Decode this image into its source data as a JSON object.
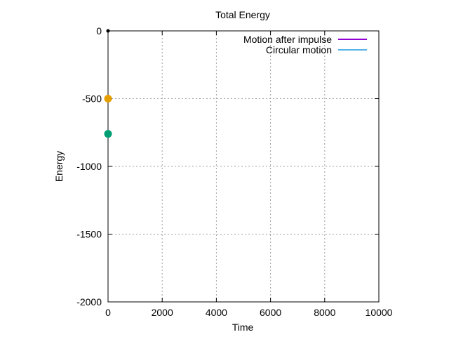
{
  "chart_data": {
    "type": "line",
    "title": "Total Energy",
    "xlabel": "Time",
    "ylabel": "Energy",
    "xlim": [
      0,
      10000
    ],
    "ylim": [
      -2000,
      0
    ],
    "x_ticks": [
      0,
      2000,
      4000,
      6000,
      8000,
      10000
    ],
    "y_ticks": [
      0,
      -500,
      -1000,
      -1500,
      -2000
    ],
    "grid": true,
    "legend_position": "top-right",
    "series": [
      {
        "name": "Motion after impulse",
        "color": "#9400d3",
        "points": [
          [
            0,
            0
          ]
        ]
      },
      {
        "name": "Circular motion",
        "color": "#56b4e9",
        "points": [
          [
            0,
            0
          ]
        ]
      }
    ],
    "markers": [
      {
        "x": 0,
        "y": 0,
        "color": "#000000",
        "size": "small"
      },
      {
        "x": 0,
        "y": -500,
        "color": "#e69f00",
        "size": "large"
      },
      {
        "x": 0,
        "y": -760,
        "color": "#009e73",
        "size": "large"
      }
    ]
  }
}
